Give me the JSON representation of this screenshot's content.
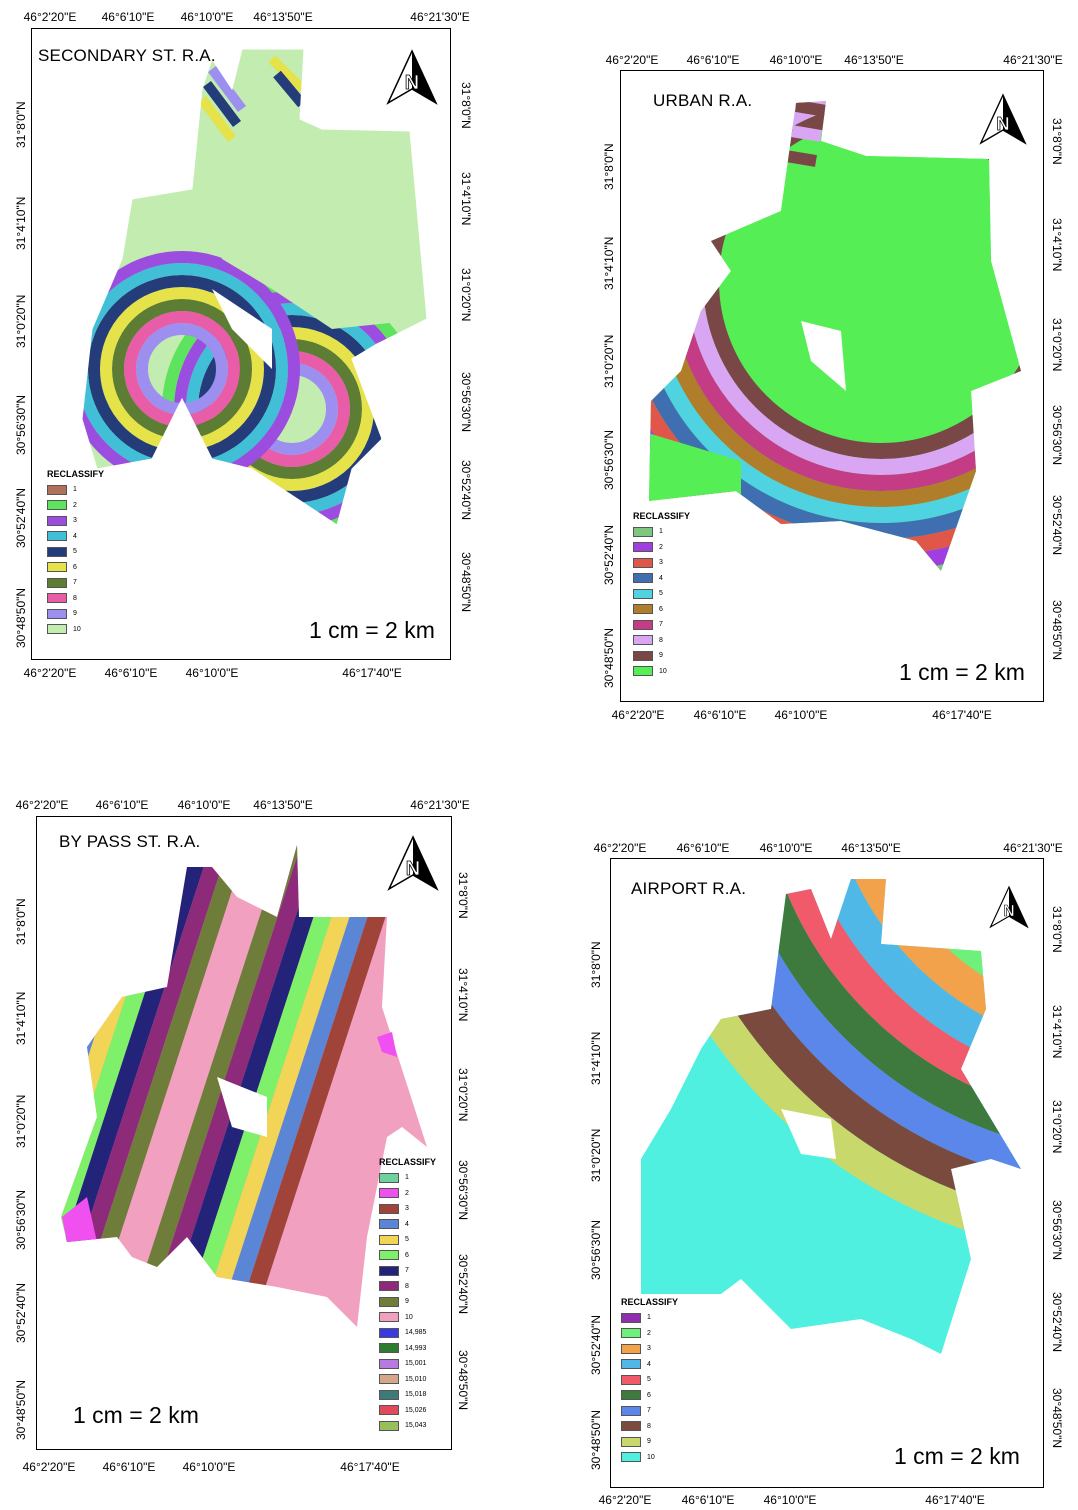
{
  "maps": [
    {
      "key": "secondary",
      "title": "SECONDARY ST. R.A.",
      "scale": "1 cm = 2 km",
      "legend_title": "RECLASSIFY",
      "legend": [
        {
          "label": "1",
          "color": "#b0715c"
        },
        {
          "label": "2",
          "color": "#5ee35e"
        },
        {
          "label": "3",
          "color": "#9b4ddf"
        },
        {
          "label": "4",
          "color": "#41bfd6"
        },
        {
          "label": "5",
          "color": "#243d7a"
        },
        {
          "label": "6",
          "color": "#e6e24a"
        },
        {
          "label": "7",
          "color": "#5c7d33"
        },
        {
          "label": "8",
          "color": "#e85ca8"
        },
        {
          "label": "9",
          "color": "#9d8ff0"
        },
        {
          "label": "10",
          "color": "#c3ecb0"
        }
      ],
      "top_ticks": [
        "46°2'20\"E",
        "46°6'10\"E",
        "46°10'0\"E",
        "46°13'50\"E",
        "46°21'30\"E"
      ],
      "bottom_ticks": [
        "46°2'20\"E",
        "46°6'10\"E",
        "46°10'0\"E",
        "46°17'40\"E"
      ],
      "left_ticks": [
        "31°8'0\"N",
        "31°4'10\"N",
        "31°0'20\"N",
        "30°56'30\"N",
        "30°52'40\"N",
        "30°48'50\"N"
      ],
      "right_ticks": [
        "31°8'0\"N",
        "31°4'10\"N",
        "31°0'20\"N",
        "30°56'30\"N",
        "30°52'40\"N",
        "30°48'50\"N"
      ]
    },
    {
      "key": "urban",
      "title": "URBAN R.A.",
      "scale": "1 cm = 2 km",
      "legend_title": "RECLASSIFY",
      "legend": [
        {
          "label": "1",
          "color": "#7fc67f"
        },
        {
          "label": "2",
          "color": "#a13ee0"
        },
        {
          "label": "3",
          "color": "#e0574a"
        },
        {
          "label": "4",
          "color": "#3f6fb0"
        },
        {
          "label": "5",
          "color": "#4fd3e0"
        },
        {
          "label": "6",
          "color": "#b07d2b"
        },
        {
          "label": "7",
          "color": "#c43b86"
        },
        {
          "label": "8",
          "color": "#d8a6f2"
        },
        {
          "label": "9",
          "color": "#7a4747"
        },
        {
          "label": "10",
          "color": "#55ee55"
        }
      ],
      "top_ticks": [
        "46°2'20\"E",
        "46°6'10\"E",
        "46°10'0\"E",
        "46°13'50\"E",
        "46°21'30\"E"
      ],
      "bottom_ticks": [
        "46°2'20\"E",
        "46°6'10\"E",
        "46°10'0\"E",
        "46°17'40\"E"
      ],
      "left_ticks": [
        "31°8'0\"N",
        "31°4'10\"N",
        "31°0'20\"N",
        "30°56'30\"N",
        "30°52'40\"N",
        "30°48'50\"N"
      ],
      "right_ticks": [
        "31°8'0\"N",
        "31°4'10\"N",
        "31°0'20\"N",
        "30°56'30\"N",
        "30°52'40\"N",
        "30°48'50\"N"
      ]
    },
    {
      "key": "bypass",
      "title": "BY PASS ST. R.A.",
      "scale": "1 cm = 2 km",
      "legend_title": "RECLASSIFY",
      "legend": [
        {
          "label": "1",
          "color": "#6fd0a0"
        },
        {
          "label": "2",
          "color": "#f050f0"
        },
        {
          "label": "3",
          "color": "#a0443a"
        },
        {
          "label": "4",
          "color": "#5b86d6"
        },
        {
          "label": "5",
          "color": "#f2d456"
        },
        {
          "label": "6",
          "color": "#7ef06a"
        },
        {
          "label": "7",
          "color": "#24237a"
        },
        {
          "label": "8",
          "color": "#8e2a7a"
        },
        {
          "label": "9",
          "color": "#6e7d3a"
        },
        {
          "label": "10",
          "color": "#f2a0c0"
        },
        {
          "label": "14,985",
          "color": "#3a3ae0"
        },
        {
          "label": "14,993",
          "color": "#2e7d2e"
        },
        {
          "label": "15,001",
          "color": "#b67ae0"
        },
        {
          "label": "15,010",
          "color": "#d6a68a"
        },
        {
          "label": "15,018",
          "color": "#3e7a7a"
        },
        {
          "label": "15,026",
          "color": "#e04a5a"
        },
        {
          "label": "15,043",
          "color": "#98c05a"
        }
      ],
      "top_ticks": [
        "46°2'20\"E",
        "46°6'10\"E",
        "46°10'0\"E",
        "46°13'50\"E",
        "46°21'30\"E"
      ],
      "bottom_ticks": [
        "46°2'20\"E",
        "46°6'10\"E",
        "46°10'0\"E",
        "46°17'40\"E"
      ],
      "left_ticks": [
        "31°8'0\"N",
        "31°4'10\"N",
        "31°0'20\"N",
        "30°56'30\"N",
        "30°52'40\"N",
        "30°48'50\"N"
      ],
      "right_ticks": [
        "31°8'0\"N",
        "31°4'10\"N",
        "31°0'20\"N",
        "30°56'30\"N",
        "30°52'40\"N",
        "30°48'50\"N"
      ]
    },
    {
      "key": "airport",
      "title": "AIRPORT R.A.",
      "scale": "1 cm = 2 km",
      "legend_title": "RECLASSIFY",
      "legend": [
        {
          "label": "1",
          "color": "#8e2fb0"
        },
        {
          "label": "2",
          "color": "#6ef07a"
        },
        {
          "label": "3",
          "color": "#f2a24a"
        },
        {
          "label": "4",
          "color": "#4fb8e6"
        },
        {
          "label": "5",
          "color": "#f05a6a"
        },
        {
          "label": "6",
          "color": "#3e7a3e"
        },
        {
          "label": "7",
          "color": "#5b86ea"
        },
        {
          "label": "8",
          "color": "#7a4a3e"
        },
        {
          "label": "9",
          "color": "#c8d86a"
        },
        {
          "label": "10",
          "color": "#4ff0e0"
        }
      ],
      "top_ticks": [
        "46°2'20\"E",
        "46°6'10\"E",
        "46°10'0\"E",
        "46°13'50\"E",
        "46°21'30\"E"
      ],
      "bottom_ticks": [
        "46°2'20\"E",
        "46°6'10\"E",
        "46°10'0\"E",
        "46°17'40\"E"
      ],
      "left_ticks": [
        "31°8'0\"N",
        "31°4'10\"N",
        "31°0'20\"N",
        "30°56'30\"N",
        "30°52'40\"N",
        "30°48'50\"N"
      ],
      "right_ticks": [
        "31°8'0\"N",
        "31°4'10\"N",
        "31°0'20\"N",
        "30°56'30\"N",
        "30°52'40\"N",
        "30°48'50\"N"
      ]
    }
  ]
}
